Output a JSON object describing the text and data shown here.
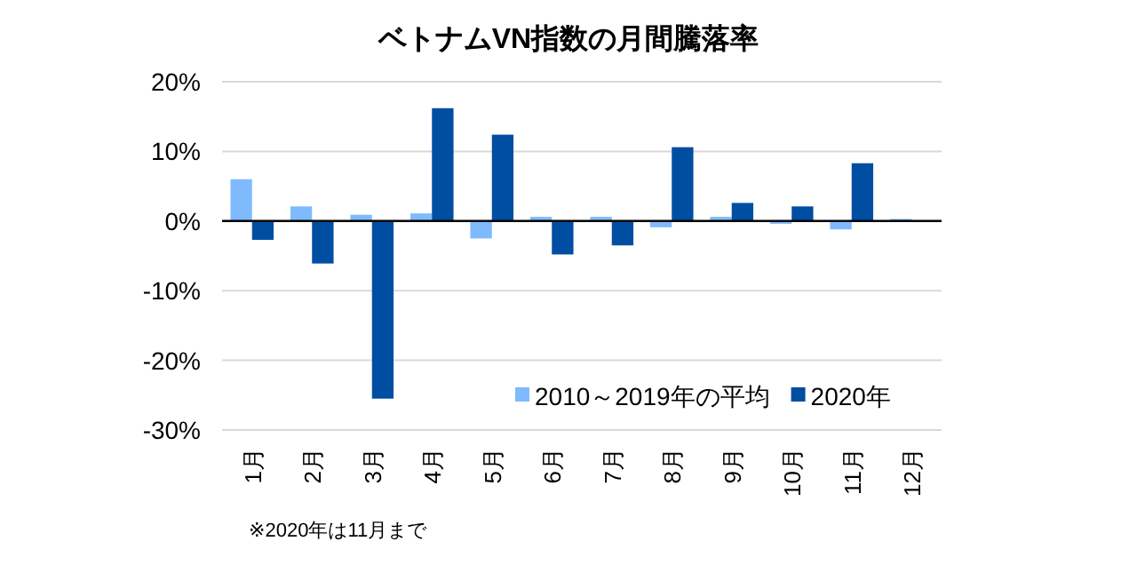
{
  "chart_data": {
    "type": "bar",
    "title": "ベトナムVN指数の月間騰落率",
    "categories": [
      "1月",
      "2月",
      "3月",
      "4月",
      "5月",
      "6月",
      "7月",
      "8月",
      "9月",
      "10月",
      "11月",
      "12月"
    ],
    "series": [
      {
        "name": "2010～2019年の平均",
        "color": "#7fbaff",
        "values": [
          6.0,
          2.1,
          0.9,
          1.1,
          -2.5,
          0.6,
          0.6,
          -0.9,
          0.6,
          -0.4,
          -1.2,
          0.3
        ]
      },
      {
        "name": "2020年",
        "color": "#004ea2",
        "values": [
          -2.7,
          -6.1,
          -25.5,
          16.2,
          12.4,
          -4.8,
          -3.5,
          10.6,
          2.6,
          2.1,
          8.3,
          null
        ]
      }
    ],
    "ylim": [
      -30,
      20
    ],
    "yticks": [
      {
        "value": -30,
        "label": "-30%"
      },
      {
        "value": -20,
        "label": "-20%"
      },
      {
        "value": -10,
        "label": "-10%"
      },
      {
        "value": 0,
        "label": "0%"
      },
      {
        "value": 10,
        "label": "10%"
      },
      {
        "value": 20,
        "label": "20%"
      }
    ],
    "grid": "y",
    "legend": "bottom right",
    "annotations": [
      "※2020年は11月まで"
    ]
  }
}
